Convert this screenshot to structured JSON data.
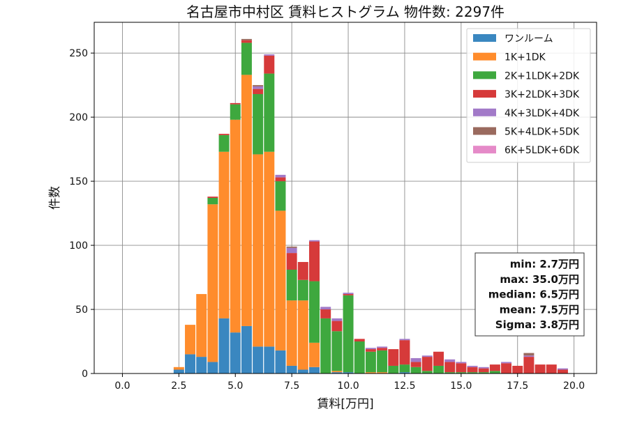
{
  "chart_data": {
    "type": "bar",
    "stacked": true,
    "title": "名古屋市中村区 賃料ヒストグラム 物件数: 2297件",
    "xlabel": "賃料[万円]",
    "ylabel": "件数",
    "xlim": [
      -1.25,
      21.0
    ],
    "ylim": [
      0,
      274
    ],
    "xticks": [
      "0.0",
      "2.5",
      "5.0",
      "7.5",
      "10.0",
      "12.5",
      "15.0",
      "17.5",
      "20.0"
    ],
    "yticks": [
      "0",
      "50",
      "100",
      "150",
      "200",
      "250"
    ],
    "grid": true,
    "legend_position": "top-right",
    "bin_start": 2.25,
    "bin_width": 0.5,
    "x": [
      2.5,
      3.0,
      3.5,
      4.0,
      4.5,
      5.0,
      5.5,
      6.0,
      6.5,
      7.0,
      7.5,
      8.0,
      8.5,
      9.0,
      9.5,
      10.0,
      10.5,
      11.0,
      11.5,
      12.0,
      12.5,
      13.0,
      13.5,
      14.0,
      14.5,
      15.0,
      15.5,
      16.0,
      16.5,
      17.0,
      17.5,
      18.0,
      18.5,
      19.0,
      19.5
    ],
    "series": [
      {
        "name": "ワンルーム",
        "color": "#3a87c0",
        "values": [
          3,
          15,
          13,
          9,
          43,
          32,
          37,
          21,
          21,
          18,
          6,
          3,
          5,
          0,
          1,
          1,
          0,
          0,
          0,
          0,
          1,
          0,
          0,
          0,
          0,
          0,
          0,
          0,
          0,
          0,
          0,
          0,
          0,
          0,
          0
        ]
      },
      {
        "name": "1K+1DK",
        "color": "#ff8c2c",
        "values": [
          2,
          23,
          49,
          123,
          130,
          166,
          196,
          150,
          152,
          109,
          51,
          54,
          19,
          0,
          1,
          0,
          0,
          1,
          1,
          0,
          0,
          0,
          0,
          0,
          0,
          0,
          0,
          0,
          0,
          0,
          0,
          0,
          0,
          0,
          0
        ]
      },
      {
        "name": "2K+1LDK+2DK",
        "color": "#3ea83e",
        "values": [
          0,
          0,
          0,
          5,
          13,
          12,
          25,
          47,
          61,
          23,
          24,
          16,
          48,
          43,
          31,
          60,
          25,
          16,
          17,
          6,
          6,
          5,
          2,
          6,
          1,
          1,
          1,
          1,
          2,
          0,
          0,
          0,
          0,
          0,
          0
        ]
      },
      {
        "name": "3K+2LDK+3DK",
        "color": "#d63a3a",
        "values": [
          0,
          0,
          0,
          1,
          1,
          1,
          2,
          4,
          14,
          3,
          13,
          14,
          31,
          7,
          8,
          1,
          2,
          2,
          2,
          13,
          19,
          4,
          11,
          11,
          8,
          7,
          4,
          3,
          5,
          8,
          6,
          13,
          7,
          7,
          3
        ]
      },
      {
        "name": "4K+3LDK+4DK",
        "color": "#a27ac8",
        "values": [
          0,
          0,
          0,
          0,
          0,
          0,
          0,
          2,
          1,
          2,
          4,
          0,
          1,
          2,
          2,
          1,
          0,
          1,
          1,
          0,
          1,
          3,
          1,
          0,
          2,
          1,
          1,
          1,
          0,
          1,
          0,
          1,
          0,
          0,
          1
        ]
      },
      {
        "name": "5K+4LDK+5DK",
        "color": "#9a6a5e",
        "values": [
          0,
          0,
          0,
          0,
          0,
          0,
          1,
          1,
          0,
          0,
          1,
          0,
          0,
          0,
          0,
          0,
          0,
          0,
          0,
          0,
          0,
          0,
          0,
          0,
          0,
          0,
          0,
          0,
          0,
          0,
          0,
          2,
          0,
          0,
          0
        ]
      },
      {
        "name": "6K+5LDK+6DK",
        "color": "#e58ac8",
        "values": [
          0,
          0,
          0,
          0,
          0,
          0,
          0,
          0,
          0,
          0,
          0,
          0,
          0,
          0,
          0,
          0,
          0,
          0,
          0,
          0,
          0,
          0,
          0,
          0,
          0,
          0,
          0,
          0,
          0,
          0,
          0,
          0,
          0,
          0,
          0
        ]
      }
    ],
    "stats": [
      "min: 2.7万円",
      "max: 35.0万円",
      "median: 6.5万円",
      "mean: 7.5万円",
      "Sigma: 3.8万円"
    ]
  }
}
